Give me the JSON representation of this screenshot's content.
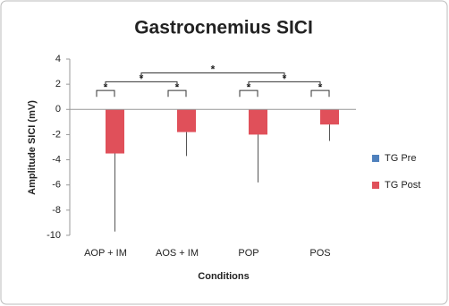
{
  "chart_data": {
    "type": "bar",
    "title": "Gastrocnemius SICI",
    "x_label": "Conditions",
    "y_label": "Amplitude SICI (mV)",
    "categories": [
      "AOP + IM",
      "AOS + IM",
      "POP",
      "POS"
    ],
    "series": [
      {
        "name": "TG Pre",
        "color": "#4f81bd",
        "values": [
          0,
          0,
          0,
          0
        ]
      },
      {
        "name": "TG Post",
        "color": "#e0505a",
        "values": [
          -3.5,
          -1.8,
          -2.0,
          -1.2
        ],
        "errors": [
          6.2,
          1.9,
          3.8,
          1.3
        ]
      }
    ],
    "ylim": [
      -10,
      4
    ],
    "yticks": [
      -10,
      -8,
      -6,
      -4,
      -2,
      0,
      2,
      4
    ],
    "grid": false,
    "legend": "right",
    "annotations": [
      "*",
      "*",
      "*",
      "*",
      "*",
      "*",
      "*"
    ]
  }
}
